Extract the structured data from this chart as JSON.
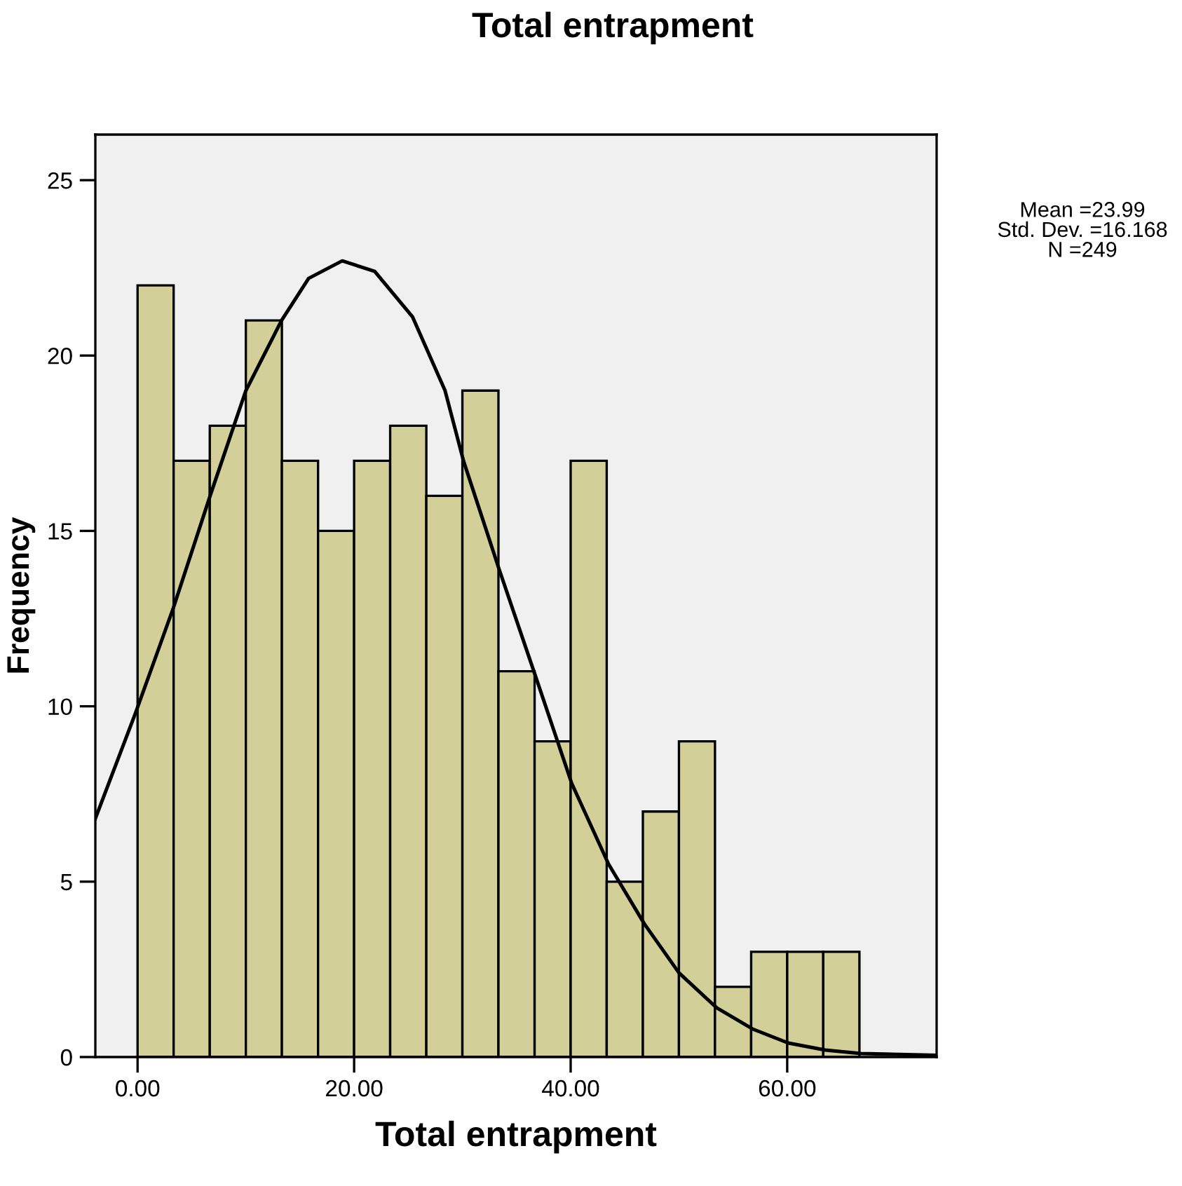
{
  "chart_data": {
    "type": "histogram",
    "title": "Total entrapment",
    "xlabel": "Total entrapment",
    "ylabel": "Frequency",
    "bins": [
      0,
      3.33,
      6.67,
      10,
      13.33,
      16.67,
      20,
      23.33,
      26.67,
      30,
      33.33,
      36.67,
      40,
      43.33,
      46.67,
      50,
      53.33,
      56.67,
      60,
      63.33,
      66.67
    ],
    "values": [
      22,
      17,
      18,
      21,
      17,
      15,
      17,
      18,
      16,
      19,
      11,
      9,
      17,
      5,
      7,
      9,
      2,
      3,
      3,
      3
    ],
    "color": "#d3cf99",
    "series": [
      {
        "type": "line",
        "color": "#000000",
        "x": [
          -3.9,
          -0.2,
          3.3,
          6.7,
          10,
          13.3,
          15.8,
          18.9,
          21.9,
          25.4,
          28.4,
          30.1,
          33.4,
          36.6,
          40.1,
          43.5,
          46.8,
          50,
          53.5,
          56.8,
          60.1,
          63.5,
          66.8,
          73.8
        ],
        "values": [
          6.8,
          9.8,
          12.8,
          16,
          19,
          21,
          22.2,
          22.7,
          22.4,
          21.1,
          19,
          17,
          13.9,
          11,
          7.8,
          5.5,
          3.8,
          2.4,
          1.4,
          0.8,
          0.4,
          0.2,
          0.1,
          0.05
        ]
      }
    ],
    "xlim": [
      -3.9,
      73.8
    ],
    "ylim": [
      0,
      26.3
    ],
    "xticks": [
      {
        "value": 0,
        "label": "0.00"
      },
      {
        "value": 20,
        "label": "20.00"
      },
      {
        "value": 40,
        "label": "40.00"
      },
      {
        "value": 60,
        "label": "60.00"
      }
    ],
    "yticks": [
      0,
      5,
      10,
      15,
      20,
      25
    ],
    "grid": false,
    "annotations": [
      "Mean =23.99\nStd. Dev. =16.168\nN =249"
    ]
  }
}
